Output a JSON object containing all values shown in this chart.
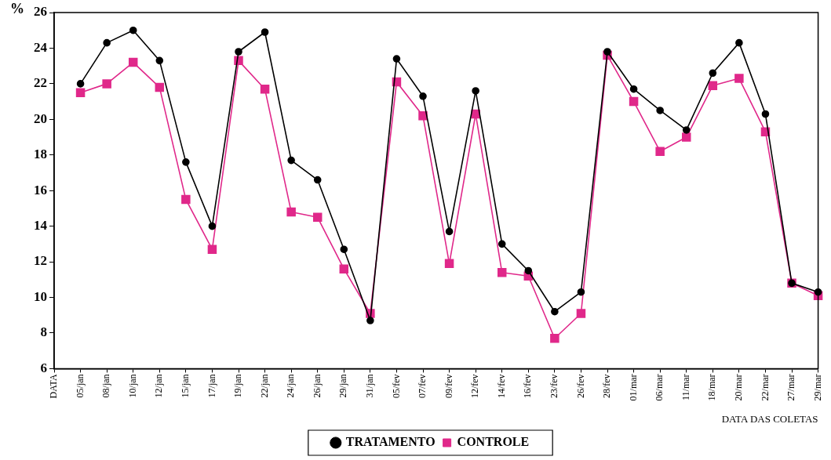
{
  "chart_data": {
    "type": "line",
    "ylabel": "%",
    "xlabel": "DATA DAS COLETAS",
    "categories": [
      "DATA",
      "05/jan",
      "08/jan",
      "10/jan",
      "12/jan",
      "15/jan",
      "17/jan",
      "19/jan",
      "22/jan",
      "24/jan",
      "26/jan",
      "29/jan",
      "31/jan",
      "05/fev",
      "07/fev",
      "09/fev",
      "12/fev",
      "14/fev",
      "16/fev",
      "23/fev",
      "26/fev",
      "28/fev",
      "01/mar",
      "06/mar",
      "11/mar",
      "18/mar",
      "20/mar",
      "22/mar",
      "27/mar",
      "29/mar"
    ],
    "series": [
      {
        "name": "TRATAMENTO",
        "color": "#000000",
        "marker": "circle",
        "values": [
          null,
          22.0,
          24.3,
          25.0,
          23.3,
          17.6,
          14.0,
          23.8,
          24.9,
          17.7,
          16.6,
          12.7,
          8.7,
          23.4,
          21.3,
          13.7,
          21.6,
          13.0,
          11.5,
          9.2,
          10.3,
          23.8,
          21.7,
          20.5,
          19.4,
          22.6,
          24.3,
          20.3,
          10.8,
          10.3
        ]
      },
      {
        "name": "CONTROLE",
        "color": "#e0288a",
        "marker": "square",
        "values": [
          null,
          21.5,
          22.0,
          23.2,
          21.8,
          15.5,
          12.7,
          23.3,
          21.7,
          14.8,
          14.5,
          11.6,
          9.1,
          22.1,
          20.2,
          11.9,
          20.3,
          11.4,
          11.2,
          7.7,
          9.1,
          23.6,
          21.0,
          18.2,
          19.0,
          21.9,
          22.3,
          19.3,
          10.8,
          10.1
        ]
      }
    ],
    "ylim": [
      6,
      26
    ],
    "yticks": [
      6,
      8,
      10,
      12,
      14,
      16,
      18,
      20,
      22,
      24,
      26
    ],
    "grid": false,
    "legend": "bottom",
    "line_style": "solid"
  }
}
